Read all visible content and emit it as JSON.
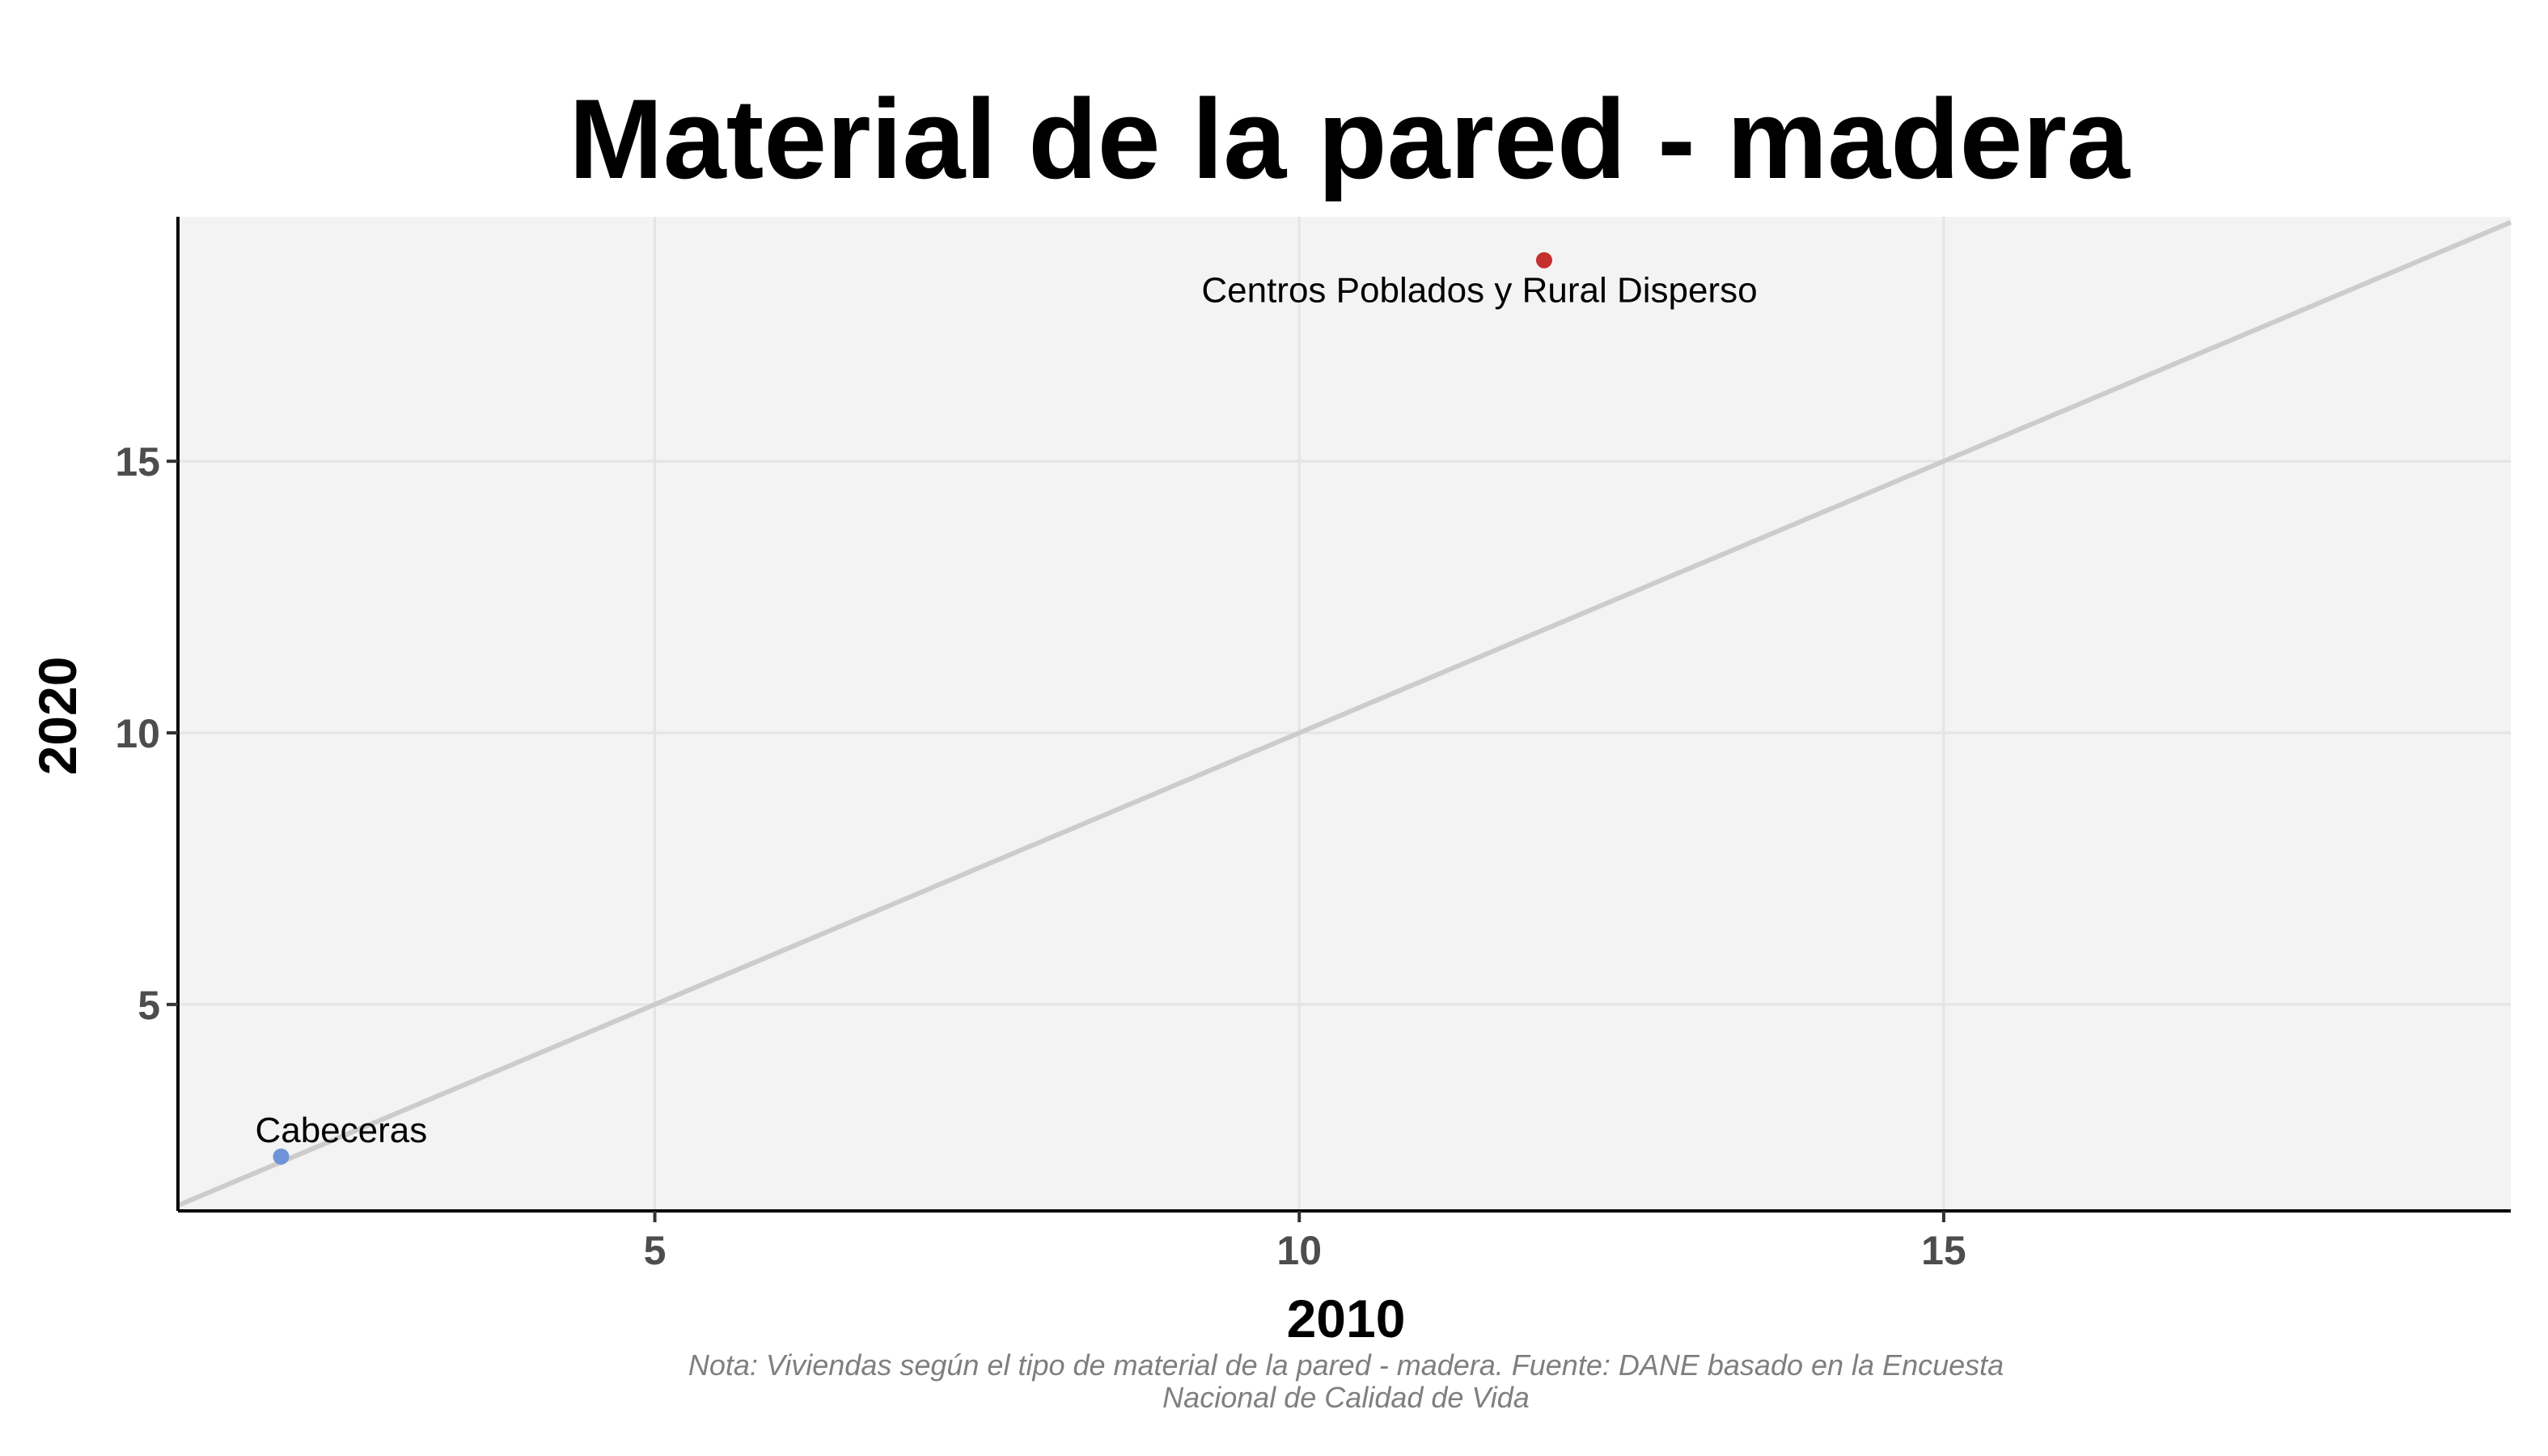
{
  "chart_data": {
    "type": "scatter",
    "title": "Material de la pared - madera",
    "xlabel": "2010",
    "ylabel": "2020",
    "xlim": [
      1.3,
      19.4
    ],
    "ylim": [
      1.2,
      19.5
    ],
    "xticks": [
      5,
      10,
      15
    ],
    "yticks": [
      5,
      10,
      15
    ],
    "grid": true,
    "reference_line": "y = x",
    "points": [
      {
        "label": "Cabeceras",
        "x": 2.1,
        "y": 2.2,
        "color": "#6f93d6"
      },
      {
        "label": "Centros Poblados y Rural Disperso",
        "x": 11.9,
        "y": 18.7,
        "color": "#c62f2f"
      }
    ],
    "colors": {
      "panel_background": "#f3f3f3",
      "grid": "#e4e4e4",
      "reference_line": "#cccccc",
      "axis": "#000000"
    },
    "note_lines": [
      "Nota: Viviendas según el tipo de material de la pared - madera. Fuente: DANE basado en la Encuesta",
      "Nacional de Calidad de Vida"
    ]
  }
}
